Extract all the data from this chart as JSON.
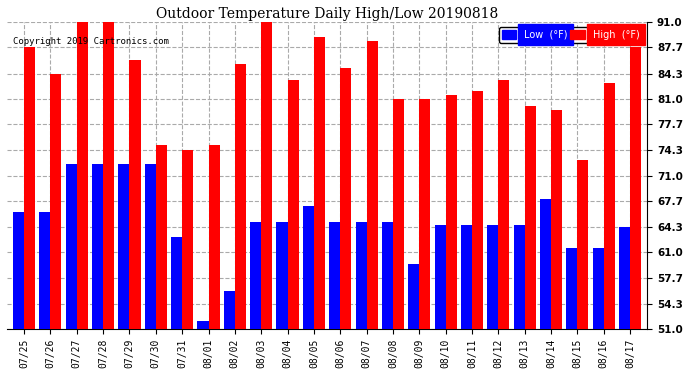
{
  "title": "Outdoor Temperature Daily High/Low 20190818",
  "copyright": "Copyright 2019 Cartronics.com",
  "categories": [
    "07/25",
    "07/26",
    "07/27",
    "07/28",
    "07/29",
    "07/30",
    "07/31",
    "08/01",
    "08/02",
    "08/03",
    "08/04",
    "08/05",
    "08/06",
    "08/07",
    "08/08",
    "08/09",
    "08/10",
    "08/11",
    "08/12",
    "08/13",
    "08/14",
    "08/15",
    "08/16",
    "08/17"
  ],
  "high_values": [
    87.7,
    84.3,
    91.0,
    91.0,
    86.0,
    75.0,
    74.3,
    75.0,
    85.5,
    91.0,
    83.5,
    89.0,
    85.0,
    88.5,
    81.0,
    81.0,
    81.5,
    82.0,
    83.5,
    80.0,
    79.5,
    73.0,
    83.0,
    87.7
  ],
  "low_values": [
    66.2,
    66.2,
    72.5,
    72.5,
    72.5,
    72.5,
    63.0,
    52.0,
    56.0,
    65.0,
    65.0,
    67.0,
    65.0,
    65.0,
    65.0,
    59.5,
    64.5,
    64.5,
    64.5,
    64.5,
    68.0,
    61.5,
    61.5,
    64.3
  ],
  "high_color": "#ff0000",
  "low_color": "#0000ff",
  "bg_color": "#ffffff",
  "grid_color": "#aaaaaa",
  "ylim_min": 51.0,
  "ylim_max": 91.0,
  "yticks": [
    51.0,
    54.3,
    57.7,
    61.0,
    64.3,
    67.7,
    71.0,
    74.3,
    77.7,
    81.0,
    84.3,
    87.7,
    91.0
  ],
  "legend_low_label": "Low  (°F)",
  "legend_high_label": "High  (°F)",
  "bar_width": 0.42
}
